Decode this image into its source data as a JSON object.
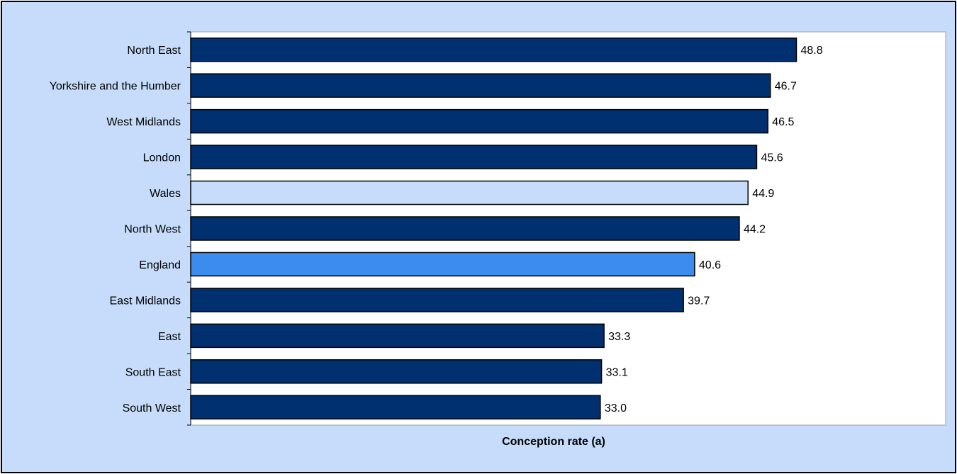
{
  "chart_data": {
    "type": "bar",
    "orientation": "horizontal",
    "categories": [
      "North East",
      "Yorkshire and the Humber",
      "West Midlands",
      "London",
      "Wales",
      "North West",
      "England",
      "East Midlands",
      "East",
      "South East",
      "South West"
    ],
    "values": [
      48.8,
      46.7,
      46.5,
      45.6,
      44.9,
      44.2,
      40.6,
      39.7,
      33.3,
      33.1,
      33.0
    ],
    "value_labels": [
      "48.8",
      "46.7",
      "46.5",
      "45.6",
      "44.9",
      "44.2",
      "40.6",
      "39.7",
      "33.3",
      "33.1",
      "33.0"
    ],
    "bar_colors": [
      "#003070",
      "#003070",
      "#003070",
      "#003070",
      "#c6dcfa",
      "#003070",
      "#3c8cf0",
      "#003070",
      "#003070",
      "#003070",
      "#003070"
    ],
    "xlabel": "Conception rate (a)",
    "xlim": [
      0,
      55
    ],
    "grid": false,
    "legend": "none",
    "plot_background": "#ffffff",
    "chart_background": "#c6dcfa"
  }
}
